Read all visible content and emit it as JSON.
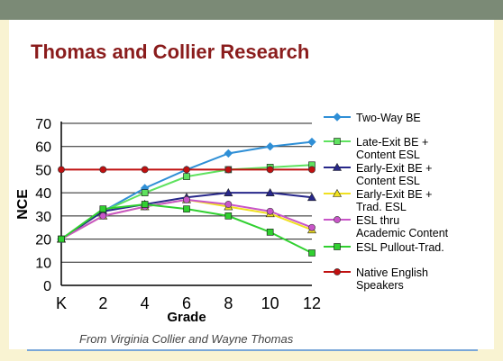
{
  "slide": {
    "title": "Thomas and Collier Research",
    "credit": "From Virginia Collier and Wayne Thomas"
  },
  "chart_data": {
    "type": "line",
    "xlabel": "Grade",
    "ylabel": "NCE",
    "categories": [
      "K",
      "2",
      "4",
      "6",
      "8",
      "10",
      "12"
    ],
    "ylim": [
      0,
      70
    ],
    "yticks": [
      0,
      10,
      20,
      30,
      40,
      50,
      60,
      70
    ],
    "grid": "horizontal",
    "legend_position": "right",
    "series": [
      {
        "name": "Two-Way BE",
        "color": "#2f8fd6",
        "marker": "diamond",
        "values": [
          20,
          32,
          42,
          50,
          57,
          60,
          62
        ]
      },
      {
        "name": "Late-Exit BE + Content ESL",
        "color": "#5fe25f",
        "marker": "square",
        "values": [
          20,
          32,
          40,
          47,
          50,
          51,
          52
        ]
      },
      {
        "name": "Early-Exit BE + Content ESL",
        "color": "#27278a",
        "marker": "triangle",
        "values": [
          20,
          32,
          35,
          38,
          40,
          40,
          38
        ]
      },
      {
        "name": "Early-Exit BE + Trad. ESL",
        "color": "#f0e020",
        "marker": "triangle",
        "values": [
          20,
          30,
          34,
          37,
          34,
          31,
          24
        ]
      },
      {
        "name": "ESL thru Academic Content",
        "color": "#c855c8",
        "marker": "circle",
        "values": [
          20,
          30,
          34,
          37,
          35,
          32,
          25
        ]
      },
      {
        "name": "ESL Pullout-Trad.",
        "color": "#30d030",
        "marker": "square",
        "values": [
          20,
          33,
          35,
          33,
          30,
          23,
          14
        ]
      },
      {
        "name": "Native English Speakers",
        "color": "#c01010",
        "marker": "circle",
        "values": [
          50,
          50,
          50,
          50,
          50,
          50,
          50
        ]
      }
    ],
    "legend": [
      {
        "lines": [
          "Two-Way BE"
        ],
        "series": 0
      },
      {
        "lines": [
          "Late-Exit BE +",
          "Content ESL"
        ],
        "series": 1
      },
      {
        "lines": [
          "Early-Exit BE +",
          "Content ESL"
        ],
        "series": 2
      },
      {
        "lines": [
          "Early-Exit BE +",
          "Trad. ESL"
        ],
        "series": 3
      },
      {
        "lines": [
          "ESL thru",
          "Academic Content"
        ],
        "series": 4
      },
      {
        "lines": [
          "ESL Pullout-Trad."
        ],
        "series": 5
      },
      {
        "lines": [
          "Native English",
          "Speakers"
        ],
        "series": 6
      }
    ]
  }
}
